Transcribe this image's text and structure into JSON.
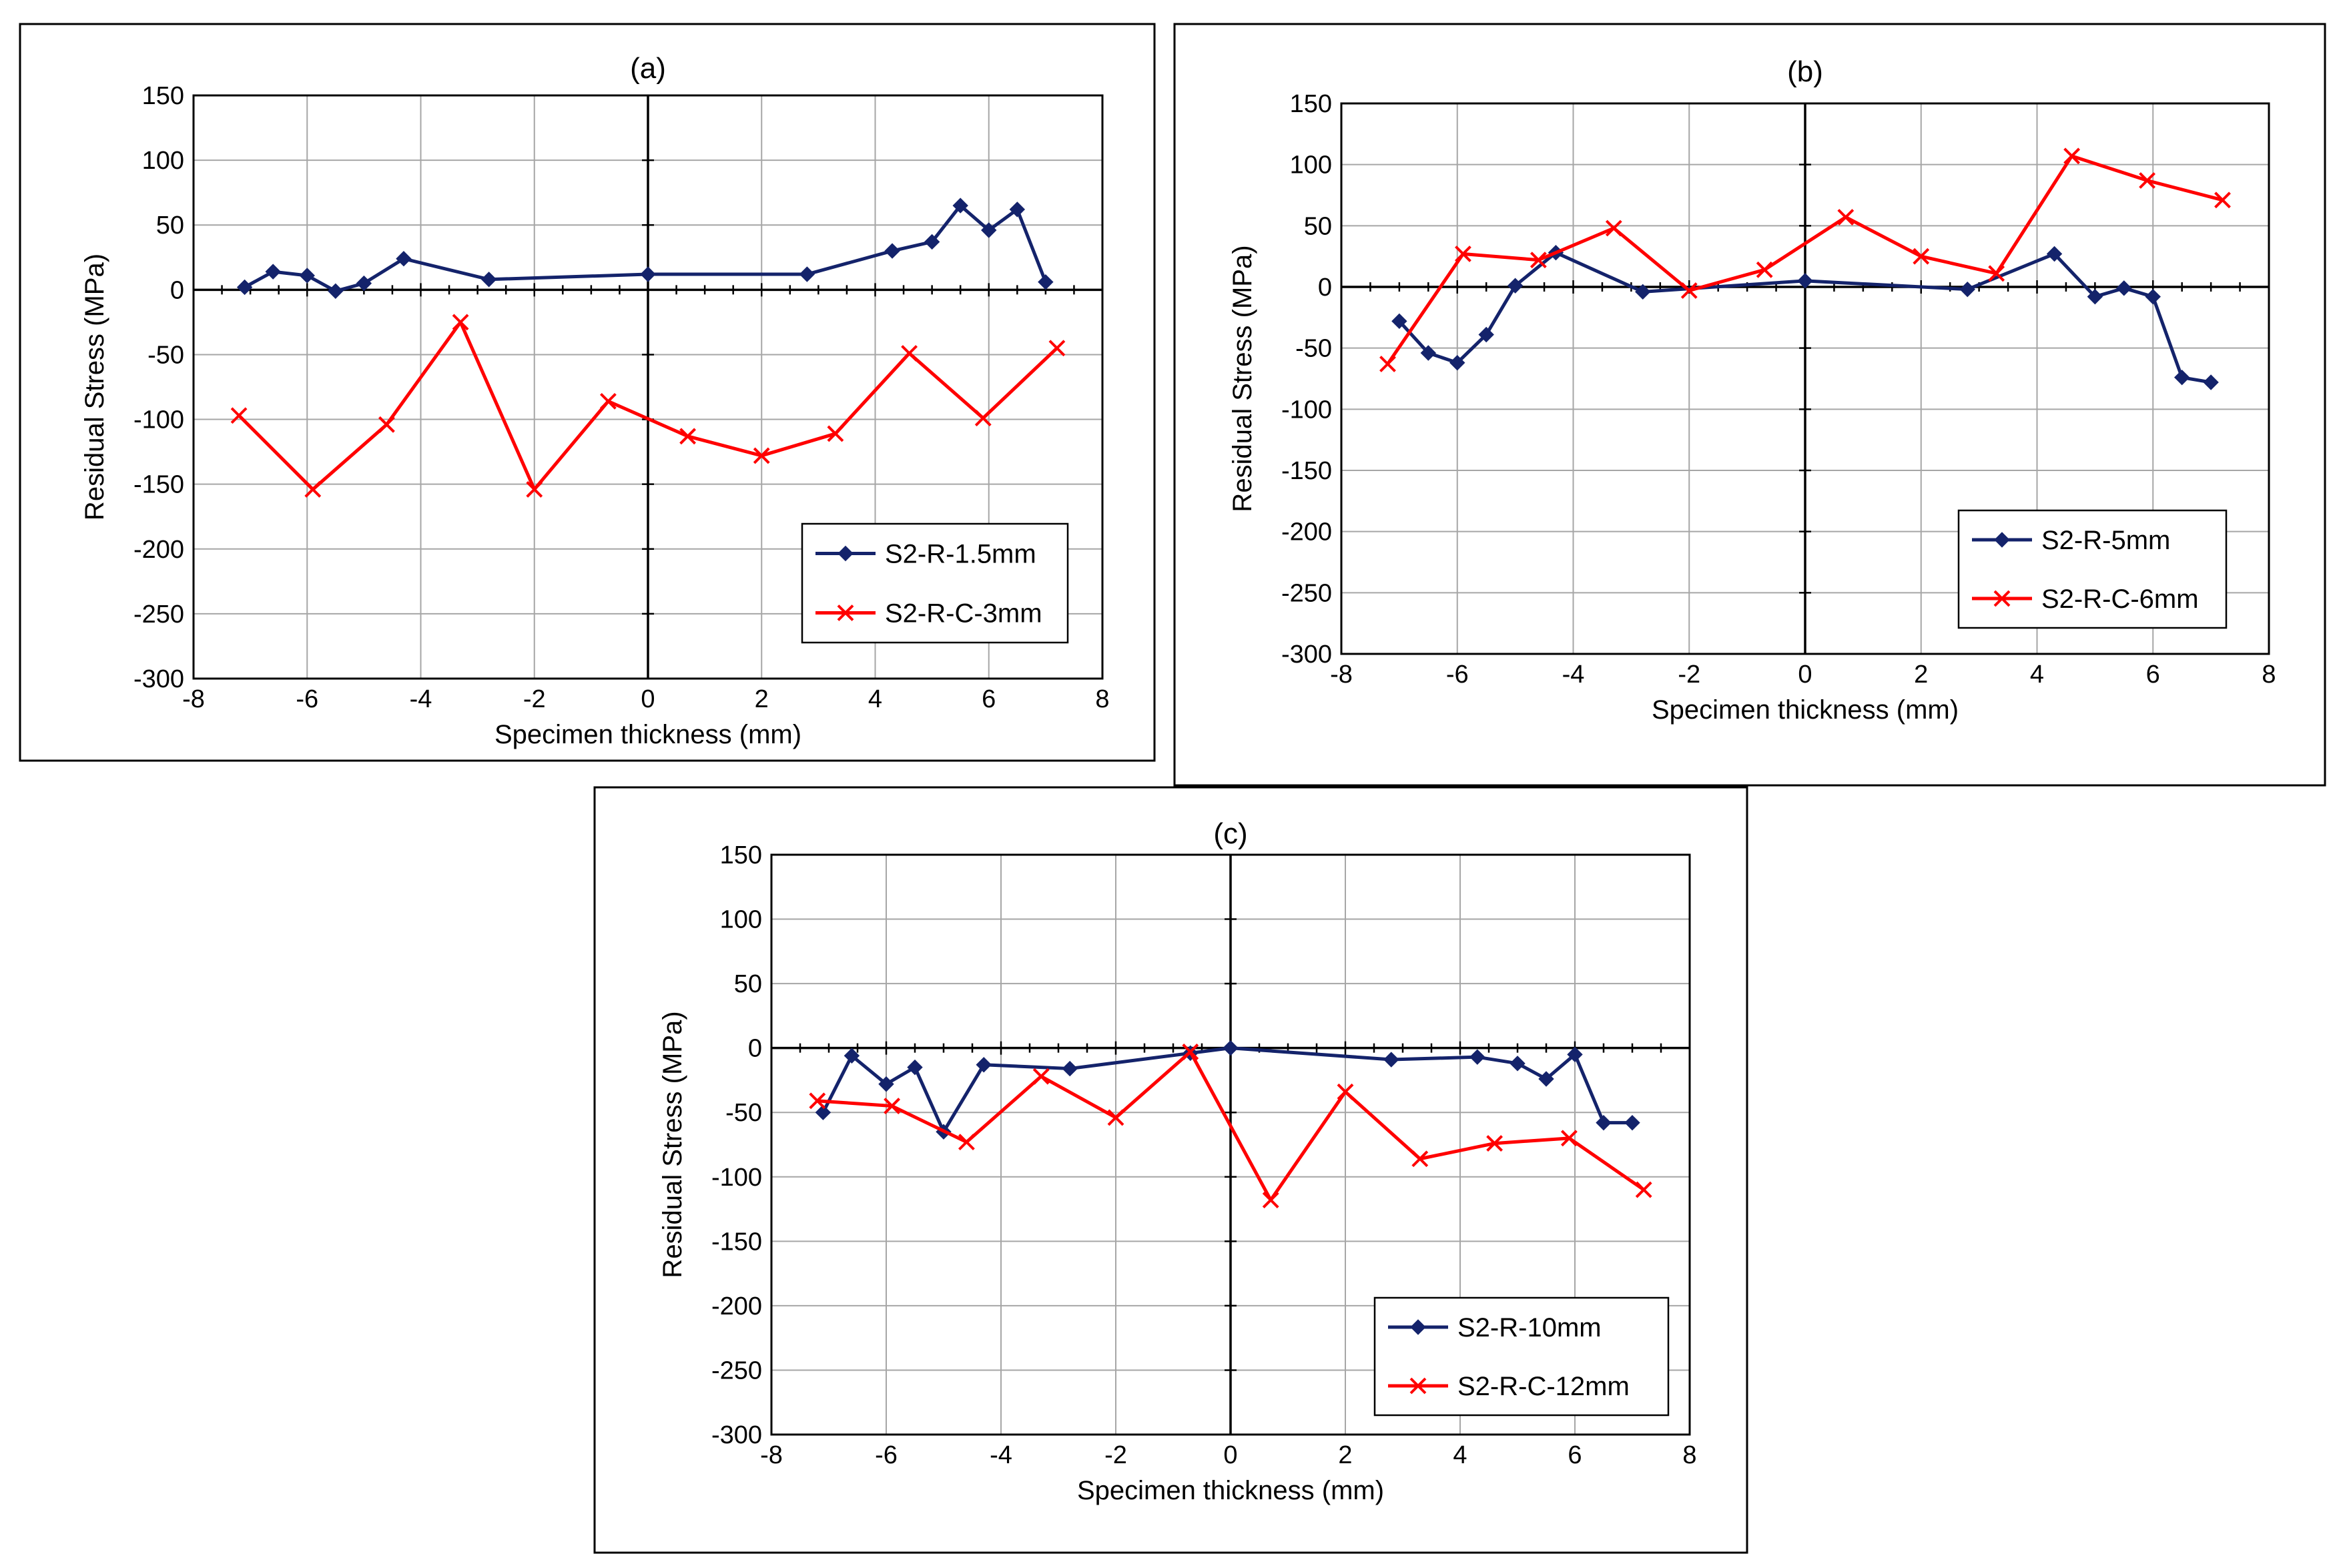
{
  "figure": {
    "colors": {
      "series1": "#14236b",
      "series2": "#ff0000",
      "grid": "#a6a6a6",
      "axis": "#000000"
    }
  },
  "chart_data": [
    {
      "type": "line",
      "panel_label": "(a)",
      "xlabel": "Specimen thickness (mm)",
      "ylabel": "Residual Stress (MPa)",
      "xlim": [
        -8,
        8
      ],
      "ylim": [
        -300,
        150
      ],
      "x_ticks": [
        -8,
        -6,
        -4,
        -2,
        0,
        2,
        4,
        6,
        8
      ],
      "y_ticks": [
        -300,
        -250,
        -200,
        -150,
        -100,
        -50,
        0,
        50,
        100,
        150
      ],
      "grid": true,
      "legend_position": "bottom-right",
      "series": [
        {
          "name": "S2-R-1.5mm",
          "marker": "diamond",
          "x": [
            -7.1,
            -6.6,
            -6.0,
            -5.5,
            -5.0,
            -4.3,
            -2.8,
            0.0,
            2.8,
            4.3,
            5.0,
            5.5,
            6.0,
            6.5,
            7.0
          ],
          "y": [
            2,
            14,
            11,
            -1,
            5,
            24,
            8,
            12,
            12,
            30,
            37,
            65,
            46,
            62,
            6
          ]
        },
        {
          "name": "S2-R-C-3mm",
          "marker": "x",
          "x": [
            -7.2,
            -5.9,
            -4.6,
            -3.3,
            -2.0,
            -0.7,
            0.7,
            2.0,
            3.3,
            4.6,
            5.9,
            7.2
          ],
          "y": [
            -97,
            -154,
            -104,
            -25,
            -154,
            -86,
            -113,
            -128,
            -111,
            -49,
            -99,
            -45
          ]
        }
      ]
    },
    {
      "type": "line",
      "panel_label": "(b)",
      "xlabel": "Specimen thickness (mm)",
      "ylabel": "Residual Stress (MPa)",
      "xlim": [
        -8,
        8
      ],
      "ylim": [
        -300,
        150
      ],
      "x_ticks": [
        -8,
        -6,
        -4,
        -2,
        0,
        2,
        4,
        6,
        8
      ],
      "y_ticks": [
        -300,
        -250,
        -200,
        -150,
        -100,
        -50,
        0,
        50,
        100,
        150
      ],
      "grid": true,
      "legend_position": "bottom-right",
      "series": [
        {
          "name": "S2-R-5mm",
          "marker": "diamond",
          "x": [
            -7.0,
            -6.5,
            -6.0,
            -5.5,
            -5.0,
            -4.3,
            -2.8,
            0.0,
            2.8,
            4.3,
            5.0,
            5.5,
            6.0,
            6.5,
            7.0
          ],
          "y": [
            -28,
            -54,
            -62,
            -39,
            1,
            28,
            -4,
            5,
            -2,
            27,
            -8,
            -1,
            -8,
            -74,
            -78
          ]
        },
        {
          "name": "S2-R-C-6mm",
          "marker": "x",
          "x": [
            -7.2,
            -5.9,
            -4.6,
            -3.3,
            -2.0,
            -0.7,
            0.7,
            2.0,
            3.3,
            4.6,
            5.9,
            7.2
          ],
          "y": [
            -63,
            27,
            22,
            48,
            -3,
            14,
            57,
            25,
            11,
            107,
            87,
            71
          ]
        }
      ]
    },
    {
      "type": "line",
      "panel_label": "(c)",
      "xlabel": "Specimen thickness (mm)",
      "ylabel": "Residual Stress (MPa)",
      "xlim": [
        -8,
        8
      ],
      "ylim": [
        -300,
        150
      ],
      "x_ticks": [
        -8,
        -6,
        -4,
        -2,
        0,
        2,
        4,
        6,
        8
      ],
      "y_ticks": [
        -300,
        -250,
        -200,
        -150,
        -100,
        -50,
        0,
        50,
        100,
        150
      ],
      "grid": true,
      "legend_position": "bottom-right",
      "series": [
        {
          "name": "S2-R-10mm",
          "marker": "diamond",
          "x": [
            -7.1,
            -6.6,
            -6.0,
            -5.5,
            -5.0,
            -4.3,
            -2.8,
            -0.7,
            0.0,
            2.8,
            4.3,
            5.0,
            5.5,
            6.0,
            6.5,
            7.0
          ],
          "y": [
            -50,
            -6,
            -28,
            -15,
            -65,
            -13,
            -16,
            -4,
            0,
            -9,
            -7,
            -12,
            -24,
            -5,
            -58,
            -58
          ]
        },
        {
          "name": "S2-R-C-12mm",
          "marker": "x",
          "x": [
            -7.2,
            -5.9,
            -4.6,
            -3.3,
            -2.0,
            -0.7,
            0.7,
            2.0,
            3.3,
            4.6,
            5.9,
            7.2
          ],
          "y": [
            -41,
            -45,
            -73,
            -22,
            -54,
            -3,
            -118,
            -34,
            -86,
            -74,
            -70,
            -110
          ]
        }
      ]
    }
  ]
}
